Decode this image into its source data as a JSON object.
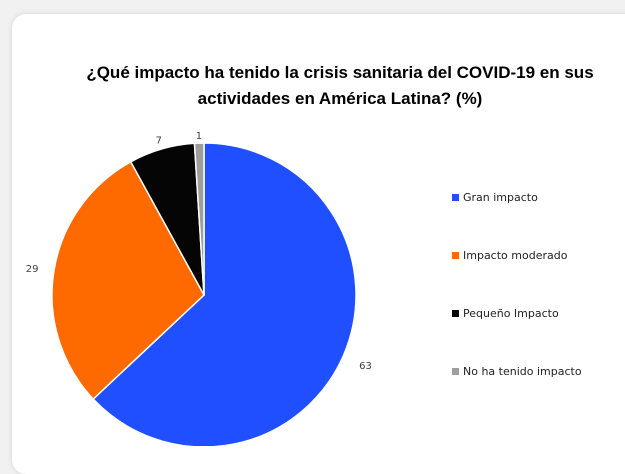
{
  "chart_data": {
    "type": "pie",
    "title": "¿Qué impacto ha tenido la crisis sanitaria del COVID-19 en sus actividades en América Latina? (%)",
    "title_lines": [
      "¿Qué impacto ha tenido la crisis sanitaria del COVID-19 en sus",
      "actividades en América Latina? (%)"
    ],
    "categories": [
      "Gran impacto",
      "Impacto moderado",
      "Pequeño Impacto",
      "No ha tenido impacto"
    ],
    "values": [
      63,
      29,
      7,
      1
    ],
    "colors": [
      "#1f4fff",
      "#ff6a00",
      "#050505",
      "#9e9e9e"
    ],
    "legend_position": "right"
  }
}
